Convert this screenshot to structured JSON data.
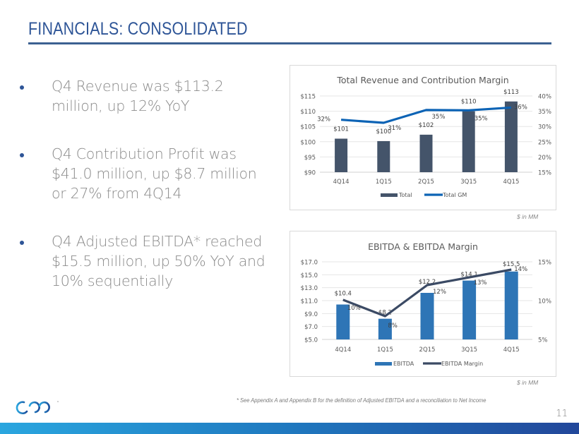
{
  "slide": {
    "title": "FINANCIALS:  CONSOLIDATED",
    "page_number": "11",
    "footnote": "* See Appendix A and Appendix B for the definition of Adjusted EBITDA and a reconciliation to Net Income",
    "logo": "gee-logo-icon",
    "colors": {
      "title": "#2e5597",
      "bullet_dot": "#2e5597",
      "body_text": "#8a8a8a",
      "footer_gradient_start": "#2aa6df",
      "footer_gradient_end": "#22479a"
    }
  },
  "bullets": [
    {
      "text": "Q4 Revenue was $113.2 million, up 12% YoY"
    },
    {
      "text": "Q4 Contribution Profit was $41.0 million, up $8.7 million or 27% from 4Q14"
    },
    {
      "text": "Q4 Adjusted EBITDA* reached $15.5 million, up 50% YoY and 10% sequentially"
    }
  ],
  "chart_data": [
    {
      "type": "bar",
      "title": "Total Revenue and Contribution Margin",
      "unit_note": "$ in MM",
      "categories": [
        "4Q14",
        "1Q15",
        "2Q15",
        "3Q15",
        "4Q15"
      ],
      "xlabel": "",
      "ylabel": "",
      "ylim": [
        90,
        115
      ],
      "yticks": [
        "$90",
        "$95",
        "$100",
        "$105",
        "$110",
        "$115"
      ],
      "y2lim": [
        15,
        40
      ],
      "y2ticks": [
        "15%",
        "20%",
        "25%",
        "30%",
        "35%",
        "40%"
      ],
      "grid": true,
      "legend": "bottom",
      "series": [
        {
          "name": "Total",
          "kind": "bar",
          "axis": "left",
          "color": "#44546a",
          "values": [
            101,
            100.2,
            102.3,
            110,
            113.2
          ],
          "labels": [
            "$101",
            "$100",
            "$102",
            "$110",
            "$113"
          ]
        },
        {
          "name": "Total GM",
          "kind": "line",
          "axis": "right",
          "color": "#0c63b5",
          "values": [
            32.2,
            31.2,
            35.4,
            35.3,
            36.2
          ],
          "labels": [
            "32%",
            "31%",
            "35%",
            "35%",
            "36%"
          ]
        }
      ]
    },
    {
      "type": "bar",
      "title": "EBITDA & EBITDA Margin",
      "unit_note": "$ in MM",
      "categories": [
        "4Q14",
        "1Q15",
        "2Q15",
        "3Q15",
        "4Q15"
      ],
      "xlabel": "",
      "ylabel": "",
      "ylim": [
        5,
        17
      ],
      "yticks": [
        "$5.0",
        "$7.0",
        "$9.0",
        "$11.0",
        "$13.0",
        "$15.0",
        "$17.0"
      ],
      "y2lim": [
        5,
        15
      ],
      "y2ticks": [
        "5%",
        "10%",
        "15%"
      ],
      "grid": true,
      "legend": "bottom",
      "series": [
        {
          "name": "EBITDA",
          "kind": "bar",
          "axis": "left",
          "color": "#2e75b6",
          "values": [
            10.4,
            8.2,
            12.2,
            14.1,
            15.5
          ],
          "labels": [
            "$10.4",
            "$8.2",
            "$12.2",
            "$14.1",
            "$15.5"
          ]
        },
        {
          "name": "EBITDA Margin",
          "kind": "line",
          "axis": "right",
          "color": "#3b4a64",
          "values": [
            10.1,
            8.0,
            12.0,
            13.0,
            14.0
          ],
          "labels": [
            "10%",
            "8%",
            "12%",
            "13%",
            "14%"
          ]
        }
      ]
    }
  ]
}
